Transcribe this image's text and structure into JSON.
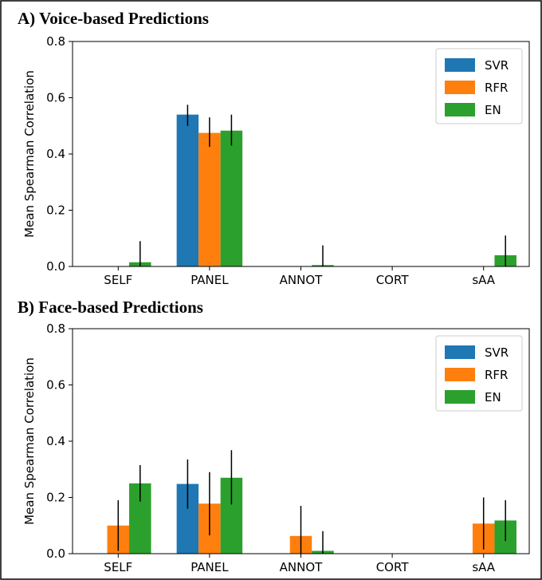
{
  "chart_data": [
    {
      "type": "bar",
      "title": "A) Voice-based Predictions",
      "ylabel": "Mean Spearman Correlation",
      "xlabel": "",
      "categories": [
        "SELF",
        "PANEL",
        "ANNOT",
        "CORT",
        "sAA"
      ],
      "ylim": [
        0,
        0.8
      ],
      "yticks": [
        "0.0",
        "0.2",
        "0.4",
        "0.6",
        "0.8"
      ],
      "legend_position": "top-right",
      "series": [
        {
          "name": "SVR",
          "color": "#1f77b4",
          "values": [
            null,
            0.54,
            null,
            null,
            null
          ],
          "err_low": [
            null,
            0.5,
            null,
            null,
            null
          ],
          "err_high": [
            null,
            0.575,
            null,
            null,
            null
          ]
        },
        {
          "name": "RFR",
          "color": "#ff7f0e",
          "values": [
            null,
            0.475,
            null,
            null,
            null
          ],
          "err_low": [
            null,
            0.425,
            null,
            null,
            null
          ],
          "err_high": [
            null,
            0.53,
            null,
            null,
            null
          ]
        },
        {
          "name": "EN",
          "color": "#2ca02c",
          "values": [
            0.015,
            0.483,
            0.005,
            null,
            0.04
          ],
          "err_low": [
            0.0,
            0.43,
            0.0,
            null,
            0.0
          ],
          "err_high": [
            0.09,
            0.54,
            0.075,
            null,
            0.11
          ]
        }
      ]
    },
    {
      "type": "bar",
      "title": "B) Face-based Predictions",
      "ylabel": "Mean Spearman Correlation",
      "xlabel": "",
      "categories": [
        "SELF",
        "PANEL",
        "ANNOT",
        "CORT",
        "sAA"
      ],
      "ylim": [
        0,
        0.8
      ],
      "yticks": [
        "0.0",
        "0.2",
        "0.4",
        "0.6",
        "0.8"
      ],
      "legend_position": "top-right",
      "series": [
        {
          "name": "SVR",
          "color": "#1f77b4",
          "values": [
            null,
            0.248,
            null,
            null,
            null
          ],
          "err_low": [
            null,
            0.16,
            null,
            null,
            null
          ],
          "err_high": [
            null,
            0.335,
            null,
            null,
            null
          ]
        },
        {
          "name": "RFR",
          "color": "#ff7f0e",
          "values": [
            0.1,
            0.178,
            0.063,
            null,
            0.107
          ],
          "err_low": [
            0.01,
            0.065,
            0.0,
            null,
            0.015
          ],
          "err_high": [
            0.19,
            0.29,
            0.17,
            null,
            0.2
          ]
        },
        {
          "name": "EN",
          "color": "#2ca02c",
          "values": [
            0.25,
            0.27,
            0.01,
            null,
            0.118
          ],
          "err_low": [
            0.185,
            0.175,
            0.0,
            null,
            0.045
          ],
          "err_high": [
            0.315,
            0.368,
            0.08,
            null,
            0.19
          ]
        }
      ]
    }
  ]
}
